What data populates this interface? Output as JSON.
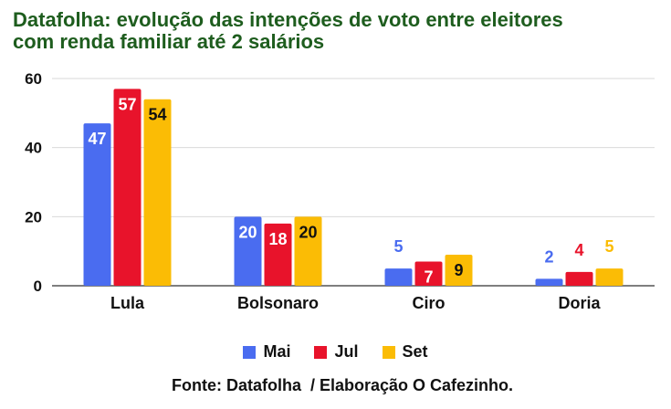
{
  "chart_data": {
    "type": "bar",
    "title_line1": "Datafolha: evolução das intenções de voto entre eleitores",
    "title_line2": "com renda familiar até 2 salários",
    "categories": [
      "Lula",
      "Bolsonaro",
      "Ciro",
      "Doria"
    ],
    "series": [
      {
        "name": "Mai",
        "values": [
          47,
          20,
          5,
          2
        ],
        "color": "#4a6cf0"
      },
      {
        "name": "Jul",
        "values": [
          57,
          18,
          7,
          4
        ],
        "color": "#e8132b"
      },
      {
        "name": "Set",
        "values": [
          54,
          20,
          9,
          5
        ],
        "color": "#fbbc05"
      }
    ],
    "ylim": [
      0,
      60
    ],
    "yticks": [
      0,
      20,
      40,
      60
    ],
    "grid": true,
    "legend_position": "bottom",
    "source": "Fonte: Datafolha  / Elaboração O Cafezinho."
  }
}
